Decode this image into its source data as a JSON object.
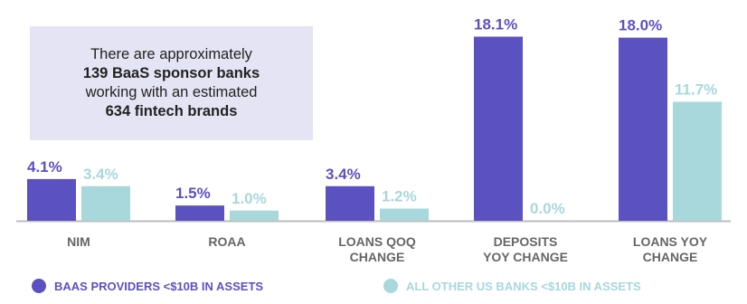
{
  "note": {
    "line1": "There are approximately",
    "line2": "139 BaaS sponsor banks",
    "line3": "working with an estimated",
    "line4": "634 fintech brands"
  },
  "chart_data": {
    "type": "bar",
    "categories": [
      [
        "NIM"
      ],
      [
        "ROAA"
      ],
      [
        "LOANS QOQ",
        "CHANGE"
      ],
      [
        "DEPOSITS",
        "YOY CHANGE"
      ],
      [
        "LOANS YOY",
        "CHANGE"
      ]
    ],
    "series": [
      {
        "name": "BAAS PROVIDERS <$10B IN ASSETS",
        "color": "#5c51c0",
        "values": [
          4.1,
          1.5,
          3.4,
          18.1,
          18.0
        ],
        "labels": [
          "4.1%",
          "1.5%",
          "3.4%",
          "18.1%",
          "18.0%"
        ]
      },
      {
        "name": "ALL OTHER US BANKS <$10B IN ASSETS",
        "color": "#a8d7dc",
        "values": [
          3.4,
          1.0,
          1.2,
          0.0,
          11.7
        ],
        "labels": [
          "3.4%",
          "1.0%",
          "1.2%",
          "0.0%",
          "11.7%"
        ]
      }
    ],
    "ylim": [
      0,
      18.5
    ],
    "grid": false,
    "legend_position": "bottom",
    "label_colors": {
      "series1": "#5c51c0",
      "series2": "#a8d7dc"
    },
    "category_label_color": "#666666",
    "baseline_color": "#bdbdbd"
  }
}
